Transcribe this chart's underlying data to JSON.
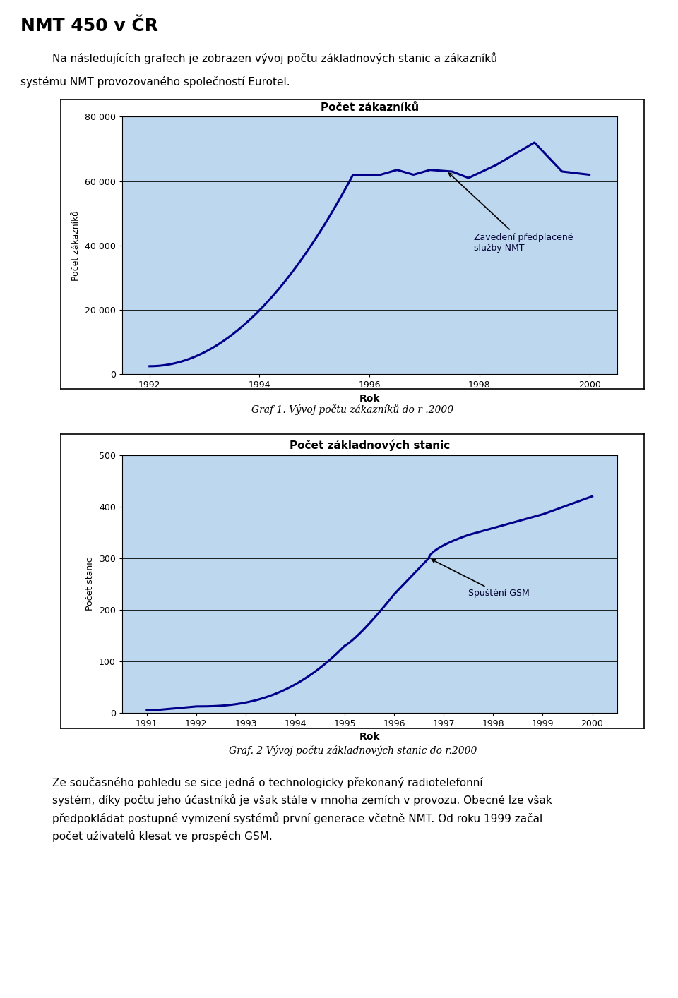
{
  "page_title": "NMT 450 v ČR",
  "intro_line1": "Na následujících grafech je zobrazen vývoj počtu základnových stanic a zákazníků",
  "intro_line2": "systému NMT provozovaného společností Eurotel.",
  "chart1": {
    "title": "Počet zákazníků",
    "xlabel": "Rok",
    "ylabel": "Počet zákazníků",
    "ylim": [
      0,
      80000
    ],
    "yticks": [
      0,
      20000,
      40000,
      60000,
      80000
    ],
    "ytick_labels": [
      "0",
      "20 000",
      "40 000",
      "60 000",
      "80 000"
    ],
    "xlim": [
      1991.5,
      2000.5
    ],
    "xticks": [
      1992,
      1994,
      1996,
      1998,
      2000
    ],
    "bg_color": "#BDD7EE",
    "line_color": "#00008B",
    "annotation_text": "Zavedení předplacené\nslužby NMT",
    "caption": "Graf 1. Vývoj počtu zákazníků do r .2000"
  },
  "chart2": {
    "title": "Počet základnových stanic",
    "xlabel": "Rok",
    "ylabel": "Počet stanic",
    "ylim": [
      0,
      500
    ],
    "yticks": [
      0,
      100,
      200,
      300,
      400,
      500
    ],
    "ytick_labels": [
      "0",
      "100",
      "200",
      "300",
      "400",
      "500"
    ],
    "xlim": [
      1990.5,
      2000.5
    ],
    "xticks": [
      1991,
      1992,
      1993,
      1994,
      1995,
      1996,
      1997,
      1998,
      1999,
      2000
    ],
    "bg_color": "#BDD7EE",
    "line_color": "#00008B",
    "annotation_text": "Spuštění GSM",
    "caption": "Graf. 2 Vývoj počtu základnových stanic do r.2000"
  },
  "footer_lines": [
    "Ze současného pohledu se sice jedná o technologicky překonaný radiotelefonní",
    "systém, díky počtu jeho účastníků je však stále v mnoha zemích v provozu. Obecně lze však",
    "předpokládat postupné vymizení systémů první generace včetně NMT. Od roku 1999 začal",
    "počet uživatelů klesat ve prospěch GSM."
  ]
}
